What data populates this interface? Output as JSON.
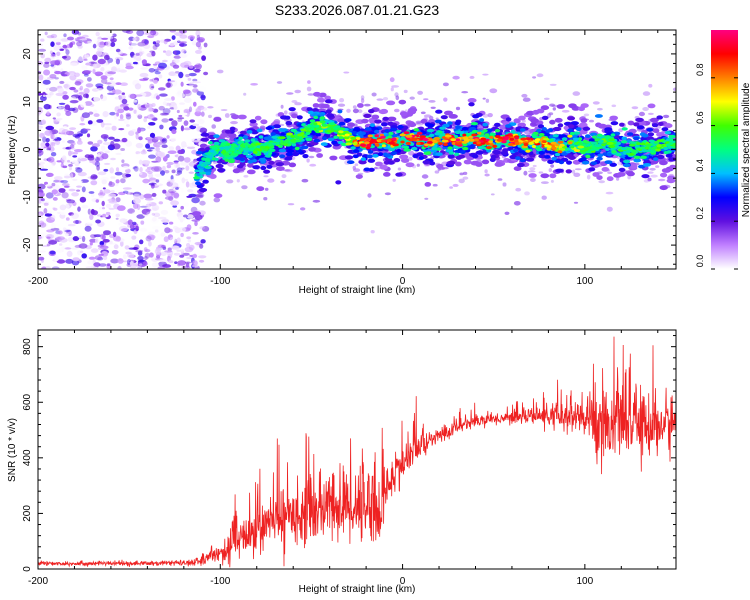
{
  "figure_title": "S233.2026.087.01.21.G23",
  "colors": {
    "snr_line": "#ee2222",
    "axis": "#000000",
    "background": "#ffffff"
  },
  "chart_data": [
    {
      "type": "heatmap",
      "panel": "spectrogram",
      "xlabel": "Height of straight line (km)",
      "ylabel": "Frequency (Hz)",
      "xlim": [
        -200,
        150
      ],
      "ylim": [
        -25,
        25
      ],
      "x_ticks": [
        -200,
        -100,
        0,
        100
      ],
      "y_ticks": [
        -20,
        -10,
        0,
        10,
        20
      ],
      "colorbar": {
        "label": "Normalized spectral amplitude",
        "range": [
          0,
          1
        ],
        "ticks": [
          0.0,
          0.2,
          0.4,
          0.6,
          0.8
        ],
        "tick_labels": [
          "0.0",
          "0.2",
          "0.4",
          "0.6",
          "0.8"
        ],
        "colormap": [
          "#ffffff",
          "#c080ff",
          "#6010e0",
          "#0000ff",
          "#00c0ff",
          "#00ff80",
          "#40ff00",
          "#ffff00",
          "#ff8000",
          "#ff0000",
          "#ff0080"
        ]
      },
      "noise_region_x": [
        -200,
        -108
      ],
      "noise_alpha": 0.22,
      "ridge": {
        "x": [
          -113,
          -108,
          -100,
          -90,
          -80,
          -70,
          -60,
          -50,
          -45,
          -40,
          -35,
          -30,
          -25,
          -20,
          -10,
          0,
          10,
          20,
          30,
          40,
          50,
          60,
          70,
          80,
          90,
          100,
          110,
          120,
          130,
          140,
          150
        ],
        "freq_hz": [
          -5,
          -2,
          0,
          0,
          0.5,
          1,
          2.5,
          4,
          5,
          5,
          4,
          2,
          1.5,
          1.5,
          1.5,
          2,
          2,
          2,
          2,
          2,
          2,
          2,
          1.8,
          1,
          1,
          0.5,
          1,
          0.5,
          0,
          1,
          1
        ],
        "peak_amplitude": [
          0.45,
          0.5,
          0.55,
          0.55,
          0.6,
          0.6,
          0.62,
          0.65,
          0.65,
          0.62,
          0.65,
          0.75,
          0.85,
          0.95,
          0.95,
          0.95,
          0.95,
          0.95,
          0.95,
          0.95,
          0.95,
          0.95,
          0.9,
          0.85,
          0.8,
          0.6,
          0.6,
          0.6,
          0.6,
          0.6,
          0.6
        ]
      }
    },
    {
      "type": "line",
      "panel": "snr",
      "xlabel": "Height of straight line (km)",
      "ylabel": "SNR (10 * v/v)",
      "xlim": [
        -200,
        150
      ],
      "ylim": [
        0,
        860
      ],
      "x_ticks": [
        -200,
        -100,
        0,
        100
      ],
      "y_ticks": [
        0,
        200,
        400,
        600,
        800
      ],
      "series": [
        {
          "name": "SNR",
          "x": [
            -200,
            -150,
            -115,
            -100,
            -90,
            -80,
            -70,
            -60,
            -50,
            -40,
            -30,
            -20,
            -15,
            -12,
            -10,
            -5,
            0,
            10,
            20,
            30,
            40,
            50,
            60,
            70,
            80,
            90,
            100,
            110,
            120,
            130,
            140,
            150
          ],
          "mean": [
            20,
            20,
            22,
            60,
            100,
            140,
            175,
            200,
            210,
            220,
            230,
            240,
            240,
            170,
            280,
            330,
            380,
            440,
            480,
            510,
            535,
            540,
            545,
            550,
            550,
            545,
            540,
            530,
            525,
            520,
            515,
            530
          ],
          "noise": [
            8,
            8,
            10,
            30,
            60,
            80,
            90,
            100,
            110,
            120,
            130,
            140,
            140,
            110,
            90,
            70,
            60,
            40,
            30,
            25,
            20,
            20,
            20,
            25,
            40,
            60,
            80,
            130,
            120,
            110,
            110,
            100
          ]
        }
      ]
    }
  ]
}
